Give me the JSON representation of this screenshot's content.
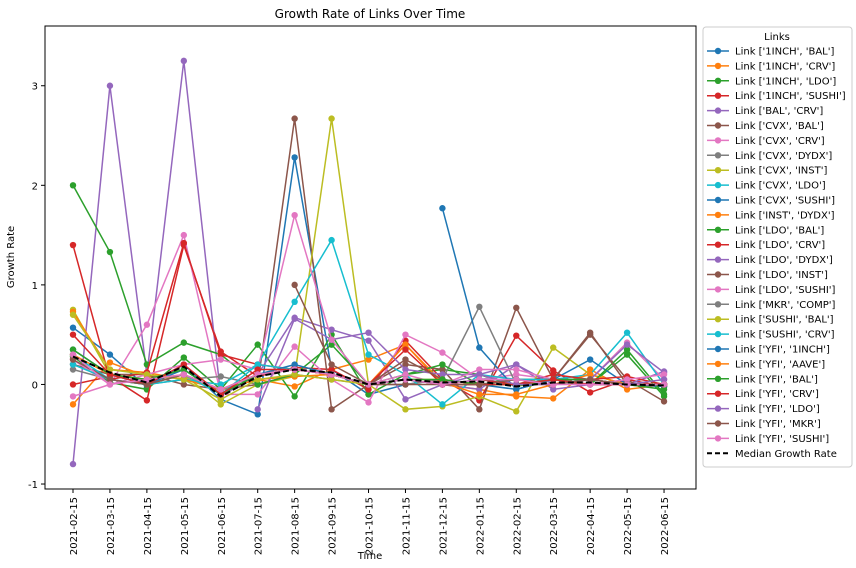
{
  "chart_data": {
    "type": "line",
    "title": "Growth Rate of Links Over Time",
    "xlabel": "Time",
    "ylabel": "Growth Rate",
    "legend_title": "Links",
    "legend_position": "outside-right",
    "grid": false,
    "ylim": [
      -1.05,
      3.6
    ],
    "yticks": [
      -1,
      0,
      1,
      2,
      3
    ],
    "categories": [
      "2021-02-15",
      "2021-03-15",
      "2021-04-15",
      "2021-05-15",
      "2021-06-15",
      "2021-07-15",
      "2021-08-15",
      "2021-09-15",
      "2021-10-15",
      "2021-11-15",
      "2021-12-15",
      "2022-01-15",
      "2022-02-15",
      "2022-03-15",
      "2022-04-15",
      "2022-05-15",
      "2022-06-15"
    ],
    "series": [
      {
        "name": "Link ['1INCH', 'BAL']",
        "color": "#1f77b4",
        "values": [
          0.57,
          0.3,
          -0.03,
          0.2,
          -0.15,
          -0.3,
          2.28,
          0.15,
          -0.1,
          0.0,
          0.05,
          0.0,
          -0.05,
          0.05,
          0.05,
          0.0,
          -0.02
        ]
      },
      {
        "name": "Link ['1INCH', 'CRV']",
        "color": "#ff7f0e",
        "values": [
          -0.2,
          0.22,
          0.08,
          0.06,
          -0.05,
          0.05,
          -0.02,
          0.15,
          0.25,
          0.4,
          0.0,
          -0.05,
          -0.12,
          -0.14,
          0.15,
          -0.05,
          0.0
        ]
      },
      {
        "name": "Link ['1INCH', 'LDO']",
        "color": "#2ca02c",
        "values": [
          0.28,
          0.02,
          -0.05,
          0.27,
          -0.05,
          0.4,
          -0.12,
          0.5,
          -0.1,
          0.1,
          0.15,
          0.1,
          -0.02,
          0.05,
          0.0,
          0.3,
          -0.12
        ]
      },
      {
        "name": "Link ['1INCH', 'SUSHI']",
        "color": "#d62728",
        "values": [
          0.0,
          0.08,
          -0.16,
          1.4,
          0.33,
          0.08,
          0.17,
          0.15,
          -0.05,
          0.44,
          0.05,
          -0.16,
          0.49,
          0.14,
          -0.08,
          0.05,
          -0.02
        ]
      },
      {
        "name": "Link ['BAL', 'CRV']",
        "color": "#9467bd",
        "values": [
          -0.8,
          3.0,
          0.1,
          3.25,
          -0.12,
          0.1,
          0.67,
          0.55,
          0.44,
          -0.15,
          0.0,
          -0.05,
          0.2,
          -0.05,
          0.0,
          0.0,
          0.13
        ]
      },
      {
        "name": "Link ['CVX', 'BAL']",
        "color": "#8c564b",
        "values": [
          0.2,
          0.1,
          0.1,
          0.0,
          -0.05,
          0.0,
          2.67,
          -0.25,
          0.0,
          0.2,
          0.15,
          -0.25,
          0.77,
          0.05,
          0.5,
          0.05,
          -0.17
        ]
      },
      {
        "name": "Link ['CVX', 'CRV']",
        "color": "#e377c2",
        "values": [
          -0.12,
          0.0,
          0.6,
          1.5,
          -0.1,
          -0.1,
          0.38,
          0.05,
          -0.18,
          0.5,
          0.32,
          0.05,
          0.1,
          0.05,
          0.05,
          0.42,
          0.05
        ]
      },
      {
        "name": "Link ['CVX', 'DYDX']",
        "color": "#7f7f7f",
        "values": [
          0.15,
          0.05,
          0.0,
          0.05,
          0.08,
          0.0,
          0.1,
          0.05,
          0.0,
          0.0,
          0.05,
          0.78,
          0.0,
          0.05,
          0.0,
          0.0,
          0.0
        ]
      },
      {
        "name": "Link ['CVX', 'INST']",
        "color": "#bcbd22",
        "values": [
          0.75,
          0.1,
          0.0,
          0.1,
          -0.2,
          0.0,
          0.08,
          2.67,
          0.0,
          -0.25,
          -0.22,
          -0.12,
          -0.27,
          0.37,
          0.1,
          0.0,
          0.0
        ]
      },
      {
        "name": "Link ['CVX', 'LDO']",
        "color": "#17becf",
        "values": [
          0.3,
          0.05,
          0.0,
          0.05,
          0.0,
          0.2,
          0.83,
          1.45,
          0.3,
          0.1,
          -0.2,
          0.1,
          0.05,
          0.05,
          0.1,
          0.52,
          0.0
        ]
      },
      {
        "name": "Link ['CVX', 'SUSHI']",
        "color": "#1f77b4",
        "values": [
          null,
          null,
          null,
          null,
          null,
          null,
          null,
          null,
          null,
          null,
          1.77,
          0.37,
          -0.05,
          0.05,
          0.25,
          0.0,
          -0.02
        ]
      },
      {
        "name": "Link ['INST', 'DYDX']",
        "color": "#ff7f0e",
        "values": [
          0.73,
          0.15,
          0.12,
          0.05,
          -0.05,
          0.05,
          0.08,
          0.1,
          0.0,
          0.4,
          0.02,
          -0.1,
          -0.1,
          0.0,
          0.1,
          0.0,
          0.0
        ]
      },
      {
        "name": "Link ['LDO', 'BAL']",
        "color": "#2ca02c",
        "values": [
          2.0,
          1.33,
          0.2,
          0.42,
          0.3,
          0.0,
          0.1,
          0.4,
          0.0,
          0.1,
          0.2,
          0.0,
          0.05,
          0.05,
          0.0,
          0.35,
          -0.1
        ]
      },
      {
        "name": "Link ['LDO', 'CRV']",
        "color": "#d62728",
        "values": [
          1.4,
          0.05,
          0.12,
          1.42,
          0.3,
          0.2,
          0.15,
          0.1,
          0.0,
          0.35,
          0.0,
          0.05,
          0.0,
          0.1,
          0.05,
          0.08,
          0.0
        ]
      },
      {
        "name": "Link ['LDO', 'DYDX']",
        "color": "#9467bd",
        "values": [
          null,
          null,
          null,
          null,
          null,
          -0.25,
          0.66,
          0.45,
          0.52,
          0.15,
          0.1,
          0.1,
          0.2,
          0.0,
          0.05,
          0.4,
          0.12
        ]
      },
      {
        "name": "Link ['LDO', 'INST']",
        "color": "#8c564b",
        "values": [
          null,
          null,
          null,
          null,
          null,
          null,
          1.0,
          0.2,
          0.0,
          0.25,
          0.05,
          0.0,
          0.0,
          0.05,
          0.52,
          0.0,
          0.0
        ]
      },
      {
        "name": "Link ['LDO', 'SUSHI']",
        "color": "#e377c2",
        "values": [
          0.25,
          0.0,
          0.1,
          0.2,
          0.25,
          0.15,
          1.7,
          0.45,
          0.0,
          0.1,
          0.0,
          0.15,
          0.15,
          0.05,
          0.0,
          0.05,
          0.1
        ]
      },
      {
        "name": "Link ['MKR', 'COMP']",
        "color": "#7f7f7f",
        "values": [
          null,
          null,
          null,
          null,
          null,
          null,
          null,
          null,
          null,
          null,
          null,
          null,
          0.05,
          0.05,
          0.05,
          0.0,
          0.0
        ]
      },
      {
        "name": "Link ['SUSHI', 'BAL']",
        "color": "#bcbd22",
        "values": [
          0.7,
          0.15,
          0.1,
          0.05,
          -0.15,
          0.05,
          0.1,
          0.05,
          0.0,
          0.05,
          0.05,
          0.0,
          0.0,
          0.05,
          0.05,
          0.0,
          0.0
        ]
      },
      {
        "name": "Link ['SUSHI', 'CRV']",
        "color": "#17becf",
        "values": [
          0.2,
          0.05,
          0.0,
          0.1,
          -0.1,
          0.2,
          0.15,
          0.1,
          0.0,
          0.05,
          0.0,
          0.05,
          0.05,
          0.05,
          0.05,
          0.0,
          0.0
        ]
      },
      {
        "name": "Link ['YFI', '1INCH']",
        "color": "#1f77b4",
        "values": [
          0.35,
          0.1,
          0.0,
          0.15,
          -0.1,
          0.1,
          0.2,
          0.1,
          0.0,
          0.05,
          0.0,
          0.0,
          0.0,
          0.05,
          0.05,
          0.0,
          0.0
        ]
      },
      {
        "name": "Link ['YFI', 'AAVE']",
        "color": "#ff7f0e",
        "values": [
          0.3,
          0.1,
          0.05,
          0.1,
          -0.05,
          0.1,
          0.15,
          0.1,
          0.0,
          0.05,
          0.0,
          0.0,
          0.0,
          0.0,
          0.05,
          0.0,
          0.0
        ]
      },
      {
        "name": "Link ['YFI', 'BAL']",
        "color": "#2ca02c",
        "values": [
          0.35,
          0.1,
          0.05,
          0.15,
          -0.1,
          0.1,
          0.15,
          0.1,
          0.0,
          0.05,
          0.05,
          0.0,
          0.0,
          0.05,
          0.05,
          0.0,
          -0.05
        ]
      },
      {
        "name": "Link ['YFI', 'CRV']",
        "color": "#d62728",
        "values": [
          0.5,
          0.1,
          0.0,
          0.2,
          -0.1,
          0.15,
          0.15,
          0.1,
          0.0,
          0.05,
          0.0,
          0.0,
          0.0,
          0.05,
          0.0,
          0.0,
          0.0
        ]
      },
      {
        "name": "Link ['YFI', 'LDO']",
        "color": "#9467bd",
        "values": [
          null,
          null,
          null,
          null,
          null,
          0.1,
          0.15,
          0.1,
          0.0,
          0.05,
          0.0,
          0.1,
          0.0,
          0.0,
          0.05,
          0.0,
          0.05
        ]
      },
      {
        "name": "Link ['YFI', 'MKR']",
        "color": "#8c564b",
        "values": [
          0.25,
          0.05,
          0.0,
          0.1,
          -0.05,
          0.1,
          0.15,
          0.1,
          0.0,
          0.0,
          0.0,
          0.0,
          0.05,
          0.0,
          0.05,
          0.0,
          0.0
        ]
      },
      {
        "name": "Link ['YFI', 'SUSHI']",
        "color": "#e377c2",
        "values": [
          0.3,
          0.0,
          0.05,
          0.1,
          -0.05,
          0.1,
          0.15,
          0.1,
          0.0,
          0.05,
          0.0,
          0.05,
          0.05,
          0.0,
          0.0,
          0.0,
          0.0
        ]
      },
      {
        "name": "Median Growth Rate",
        "color": "#000000",
        "style": "dashed",
        "values": [
          0.28,
          0.12,
          0.02,
          0.18,
          -0.12,
          0.08,
          0.15,
          0.12,
          0.0,
          0.05,
          0.02,
          0.03,
          -0.02,
          0.02,
          0.02,
          0.0,
          -0.01
        ]
      }
    ]
  }
}
